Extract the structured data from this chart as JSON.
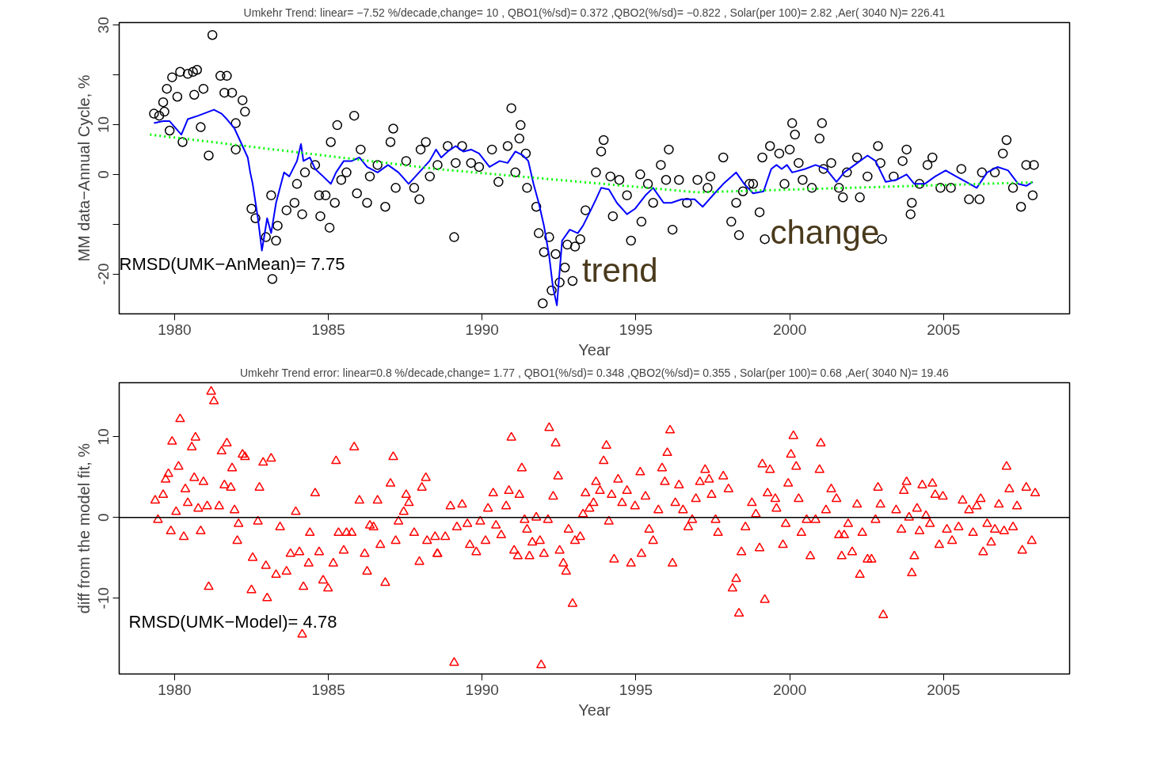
{
  "chart_data": [
    {
      "type": "scatter",
      "title": "Umkehr Trend: linear= −7.52 %/decade,change= 10 , QBO1(%/sd)= 0.372 ,QBO2(%/sd)= −0.822 , Solar(per 100)= 2.82 ,Aer( 3040 N)= 226.41",
      "xlabel": "Year",
      "ylabel": "MM data−Annual Cycle, %",
      "xlim": [
        1978.2,
        2009.1
      ],
      "ylim": [
        -28,
        30.5
      ],
      "xticks": [
        1980,
        1985,
        1990,
        1995,
        2000,
        2005
      ],
      "yticks": [
        30,
        {
          "value": 20,
          "label": null
        },
        10,
        0,
        {
          "value": -10,
          "label": null
        },
        -20
      ],
      "grid": false,
      "annotations": [
        "RMSD(UMK−AnMean)= 7.75",
        "trend",
        "change"
      ],
      "series": [
        {
          "type": "scatter",
          "marker": "circle",
          "color": "#000000",
          "x": [
            1979.33,
            1979.5,
            1979.67,
            1979.63,
            1979.75,
            1979.92,
            1980.09,
            1980.18,
            1979.84,
            1980.26,
            1980.43,
            1980.6,
            1980.73,
            1980.64,
            1980.94,
            1980.85,
            1981.11,
            1981.23,
            1981.49,
            1981.7,
            1981.62,
            1981.87,
            1982.21,
            1982.29,
            1981.99,
            1981.99,
            1982.5,
            1982.63,
            1982.97,
            1983.3,
            1983.18,
            1983.14,
            1983.35,
            1983.64,
            1983.98,
            1983.9,
            1984.15,
            1984.24,
            1984.57,
            1984.7,
            1984.91,
            1984.74,
            1985.04,
            1985.21,
            1985.08,
            1985.29,
            1985.42,
            1985.84,
            1985.59,
            1986.05,
            1985.93,
            1986.26,
            1986.35,
            1986.6,
            1986.85,
            1987.02,
            1987.11,
            1987.19,
            1987.53,
            1987.79,
            1987.96,
            1988.0,
            1988.17,
            1988.3,
            1988.55,
            1988.88,
            1989.35,
            1989.14,
            1989.64,
            1989.9,
            1990.32,
            1990.53,
            1990.83,
            1990.95,
            1991.25,
            1991.21,
            1991.08,
            1991.42,
            1991.46,
            1991.76,
            1991.84,
            1992.01,
            1992.18,
            1992.39,
            1992.26,
            1991.97,
            1992.52,
            1992.69,
            1992.94,
            1992.77,
            1993.02,
            1993.19,
            1993.36,
            1993.7,
            1993.95,
            1993.87,
            1994.25,
            1994.17,
            1994.46,
            1994.84,
            1994.71,
            1995.14,
            1995.18,
            1995.39,
            1995.56,
            1995.81,
            1996.07,
            1996.19,
            1995.98,
            1996.4,
            1996.66,
            1997.0,
            1997.33,
            1997.84,
            1998.1,
            1998.35,
            1998.26,
            1998.48,
            1998.69,
            1989.09,
            1997.42,
            1998.81,
            1999.02,
            1999.19,
            1999.11,
            1999.36,
            1999.66,
            1999.83,
            2000.08,
            2000.17,
            2000.0,
            2000.29,
            2000.42,
            2000.72,
            2001.05,
            2000.97,
            2001.1,
            2001.35,
            2001.6,
            2001.73,
            2001.86,
            2002.28,
            2002.19,
            2002.53,
            2002.87,
            2002.95,
            2003.0,
            2003.38,
            2003.67,
            2003.8,
            2003.97,
            2003.93,
            2004.22,
            2004.48,
            2004.64,
            2004.9,
            2005.24,
            2005.58,
            2005.83,
            2006.17,
            2006.25,
            2006.67,
            2006.93,
            2007.05,
            2007.26,
            2007.52,
            2007.69,
            2007.94,
            2007.9
          ],
          "values": [
            12.2,
            11.8,
            12.6,
            14.5,
            17.2,
            19.5,
            15.6,
            20.6,
            8.8,
            6.5,
            20.2,
            20.6,
            21.0,
            16.0,
            17.2,
            9.5,
            3.8,
            28.0,
            19.8,
            19.8,
            16.4,
            16.4,
            14.9,
            12.6,
            10.3,
            5.0,
            -6.9,
            -8.8,
            -12.6,
            -13.3,
            -21.0,
            -4.2,
            -10.3,
            -7.2,
            -1.9,
            -5.7,
            -8.0,
            0.4,
            1.9,
            -4.2,
            -4.2,
            -8.4,
            -10.7,
            -5.7,
            6.5,
            9.9,
            -1.1,
            11.8,
            0.4,
            5.0,
            -3.8,
            -5.7,
            -0.4,
            1.9,
            -6.5,
            6.5,
            9.2,
            -2.7,
            2.7,
            -2.7,
            -5.0,
            5.0,
            6.5,
            -0.4,
            1.9,
            5.7,
            5.7,
            2.3,
            2.3,
            1.5,
            5.0,
            -1.5,
            5.7,
            13.3,
            9.9,
            7.2,
            0.4,
            4.2,
            -2.7,
            -6.5,
            -11.8,
            -15.6,
            -12.6,
            -16.0,
            -23.3,
            -25.9,
            -21.7,
            -18.7,
            -21.4,
            -14.1,
            -14.5,
            -13.0,
            -7.2,
            0.4,
            6.9,
            4.6,
            -8.4,
            -0.4,
            -1.1,
            -13.3,
            -4.2,
            0.0,
            -9.5,
            -1.9,
            -5.7,
            1.9,
            5.0,
            -11.1,
            -1.1,
            -1.1,
            -5.7,
            -1.1,
            -2.7,
            3.4,
            -9.5,
            -12.2,
            -5.7,
            -3.4,
            -1.9,
            -12.6,
            -0.4,
            -1.9,
            -7.6,
            -13.0,
            3.4,
            5.7,
            4.2,
            -1.9,
            10.3,
            8.0,
            5.0,
            2.3,
            -1.1,
            -2.7,
            10.3,
            7.2,
            1.1,
            2.3,
            -2.7,
            -4.6,
            0.4,
            -4.6,
            3.4,
            -0.4,
            5.7,
            2.3,
            -13.0,
            -0.4,
            2.7,
            5.0,
            -5.7,
            -8.0,
            -1.9,
            1.9,
            3.4,
            -2.7,
            -2.7,
            1.1,
            -5.0,
            -5.0,
            0.4,
            0.4,
            4.2,
            6.9,
            -2.7,
            -6.5,
            1.9,
            1.9,
            -4.2
          ]
        },
        {
          "type": "line",
          "color": "#0000ff",
          "line_style": "solid",
          "x": [
            1979.33,
            1979.63,
            1979.84,
            1980.22,
            1980.43,
            1980.77,
            1981.28,
            1981.53,
            1981.7,
            1981.95,
            1982.21,
            1982.38,
            1982.46,
            1982.54,
            1982.71,
            1982.84,
            1983.01,
            1983.14,
            1983.3,
            1983.56,
            1983.73,
            1983.98,
            1984.11,
            1984.19,
            1984.4,
            1984.57,
            1984.83,
            1985.08,
            1985.25,
            1985.5,
            1985.76,
            1986.01,
            1986.26,
            1986.6,
            1986.94,
            1987.28,
            1987.61,
            1987.95,
            1988.29,
            1988.5,
            1988.67,
            1988.88,
            1989.14,
            1989.39,
            1989.64,
            1989.9,
            1990.24,
            1990.57,
            1990.83,
            1991.08,
            1991.33,
            1991.5,
            1991.67,
            1991.84,
            1992.01,
            1992.18,
            1992.3,
            1992.43,
            1992.6,
            1992.85,
            1993.11,
            1993.28,
            1993.53,
            1993.7,
            1993.87,
            1994.12,
            1994.38,
            1994.71,
            1994.97,
            1995.31,
            1995.56,
            1995.9,
            1996.15,
            1996.49,
            1996.91,
            1997.17,
            1997.5,
            1997.84,
            1998.26,
            1998.52,
            1998.81,
            1999.15,
            1999.4,
            1999.57,
            1999.74,
            1999.91,
            2000.08,
            2000.5,
            2000.84,
            2001.18,
            2001.52,
            2001.77,
            2002.11,
            2002.53,
            2002.79,
            2003.12,
            2003.46,
            2003.8,
            2004.05,
            2004.39,
            2004.73,
            2005.07,
            2005.41,
            2005.74,
            2006.08,
            2006.42,
            2006.76,
            2007.1,
            2007.43,
            2007.69,
            2007.9
          ],
          "values": [
            10.3,
            10.7,
            10.7,
            8.0,
            11.1,
            11.8,
            13.0,
            12.2,
            11.1,
            9.2,
            5.7,
            3.4,
            0.4,
            -1.9,
            -8.8,
            -15.3,
            -8.8,
            -11.8,
            -5.7,
            0.4,
            -0.4,
            2.7,
            6.1,
            2.7,
            3.4,
            1.1,
            -0.4,
            -1.9,
            0.4,
            2.7,
            2.7,
            3.4,
            1.5,
            0.4,
            1.9,
            0.4,
            -1.9,
            0.4,
            2.7,
            5.0,
            3.4,
            4.6,
            5.7,
            4.6,
            5.0,
            4.2,
            1.5,
            2.7,
            2.3,
            4.6,
            3.8,
            2.7,
            -1.9,
            -5.7,
            -10.3,
            -16.4,
            -22.5,
            -26.3,
            -13.3,
            -11.1,
            -11.8,
            -10.3,
            -7.2,
            -5.0,
            -2.7,
            -3.0,
            -5.7,
            -8.0,
            -6.9,
            -4.2,
            -2.7,
            -5.7,
            -5.7,
            -5.0,
            -5.0,
            -6.5,
            -4.2,
            -1.9,
            0.4,
            -1.9,
            -3.8,
            -3.4,
            1.1,
            1.9,
            1.1,
            1.9,
            0.4,
            1.1,
            1.9,
            1.1,
            -1.5,
            0.4,
            1.9,
            3.8,
            2.7,
            -1.5,
            -1.1,
            0.0,
            -1.9,
            -1.9,
            -0.4,
            0.8,
            -0.4,
            -1.5,
            -2.7,
            0.4,
            1.5,
            0.8,
            -1.9,
            -2.3,
            -1.5
          ]
        },
        {
          "type": "line",
          "color": "#00ff00",
          "line_style": "dotted",
          "x": [
            1979.2,
            1988.5,
            1997.0,
            2007.9
          ],
          "values": [
            8.0,
            1.1,
            -3.6,
            -1.6
          ]
        }
      ]
    },
    {
      "type": "scatter",
      "title": "Umkehr Trend error: linear=0.8 %/decade,change= 1.77 , QBO1(%/sd)= 0.348 ,QBO2(%/sd)= 0.355 , Solar(per 100)= 0.68 ,Aer( 3040 N)= 19.46",
      "xlabel": "Year",
      "ylabel": "diff from the model fit, %",
      "xlim": [
        1978.2,
        2009.1
      ],
      "ylim": [
        -19.4,
        16.7
      ],
      "xticks": [
        1980,
        1985,
        1990,
        1995,
        2000,
        2005
      ],
      "yticks": [
        -10,
        0,
        10
      ],
      "grid": false,
      "annotations": [
        "RMSD(UMK−Model)= 4.78"
      ],
      "ref_lines": [
        {
          "axis": "y",
          "value": 0,
          "color": "#000000"
        }
      ],
      "series": [
        {
          "type": "scatter",
          "marker": "triangle",
          "color": "#ff0000",
          "x": [
            1979.37,
            1979.46,
            1979.63,
            1979.71,
            1979.8,
            1979.92,
            1979.88,
            1980.05,
            1980.13,
            1980.18,
            1980.3,
            1980.35,
            1980.43,
            1980.56,
            1980.68,
            1980.64,
            1980.77,
            1980.85,
            1980.94,
            1981.06,
            1981.11,
            1981.19,
            1981.28,
            1981.45,
            1981.53,
            1981.7,
            1981.62,
            1981.83,
            1981.87,
            1981.95,
            1982.04,
            1982.08,
            1982.21,
            1982.29,
            1982.54,
            1982.5,
            1982.71,
            1982.76,
            1982.88,
            1982.97,
            1983.01,
            1983.14,
            1983.3,
            1983.43,
            1983.64,
            1983.77,
            1983.94,
            1984.06,
            1984.15,
            1984.19,
            1984.36,
            1984.4,
            1984.57,
            1984.7,
            1984.83,
            1984.99,
            1985.16,
            1985.33,
            1985.25,
            1985.5,
            1985.59,
            1985.76,
            1985.84,
            1986.01,
            1986.18,
            1986.26,
            1986.35,
            1986.47,
            1986.6,
            1986.69,
            1986.85,
            1987.02,
            1987.11,
            1987.19,
            1987.28,
            1987.45,
            1987.53,
            1987.62,
            1987.79,
            1987.96,
            1988.04,
            1988.17,
            1988.21,
            1988.47,
            1988.55,
            1988.54,
            1988.8,
            1988.97,
            1989.18,
            1989.35,
            1989.52,
            1989.6,
            1989.81,
            1989.09,
            1989.94,
            1990.11,
            1990.19,
            1990.36,
            1990.45,
            1990.62,
            1990.78,
            1990.87,
            1990.95,
            1991.04,
            1991.16,
            1991.21,
            1991.29,
            1991.38,
            1991.46,
            1991.54,
            1991.63,
            1991.76,
            1991.88,
            1991.92,
            1992.01,
            1992.14,
            1992.18,
            1992.31,
            1992.39,
            1992.47,
            1992.52,
            1992.64,
            1992.73,
            1992.81,
            1992.94,
            1993.02,
            1993.19,
            1993.28,
            1993.36,
            1993.49,
            1993.62,
            1993.7,
            1993.83,
            1993.95,
            1994.04,
            1994.12,
            1994.21,
            1994.29,
            1994.42,
            1994.55,
            1994.71,
            1994.84,
            1994.97,
            1995.14,
            1995.18,
            1995.31,
            1995.43,
            1995.56,
            1995.73,
            1995.85,
            1995.94,
            1996.02,
            1996.11,
            1996.19,
            1996.28,
            1996.4,
            1996.53,
            1996.7,
            1996.83,
            1996.95,
            1997.08,
            1997.25,
            1997.38,
            1997.46,
            1997.59,
            1997.67,
            1997.84,
            1998.01,
            1998.14,
            1998.26,
            1998.35,
            1998.43,
            1998.56,
            1998.77,
            1998.9,
            1999.02,
            1999.19,
            1999.11,
            1999.28,
            1999.36,
            1999.53,
            1999.57,
            1999.78,
            1999.87,
            1999.95,
            2000.04,
            2000.12,
            2000.21,
            2000.29,
            2000.38,
            2000.55,
            2000.67,
            2000.84,
            2000.97,
            2001.01,
            2001.18,
            2001.35,
            2001.52,
            2001.6,
            2001.69,
            2001.77,
            2002.03,
            2001.9,
            2002.19,
            2002.28,
            2002.36,
            2002.53,
            2002.66,
            2002.79,
            2002.87,
            2002.95,
            2003.04,
            2003.46,
            2003.63,
            2003.71,
            2003.8,
            2003.88,
            2003.97,
            2004.05,
            2004.14,
            2004.22,
            2004.31,
            2004.43,
            2004.56,
            2004.64,
            2004.73,
            2004.86,
            2004.98,
            2005.11,
            2005.28,
            2005.49,
            2005.62,
            2005.83,
            2005.96,
            2006.08,
            2006.21,
            2006.29,
            2006.42,
            2006.55,
            2006.67,
            2006.8,
            2006.97,
            2007.05,
            2007.14,
            2007.26,
            2007.39,
            2007.56,
            2007.69,
            2007.87,
            2007.98
          ],
          "values": [
            2.1,
            -0.3,
            2.8,
            4.7,
            5.4,
            9.4,
            -1.7,
            0.7,
            6.3,
            12.2,
            -2.4,
            3.5,
            1.8,
            8.7,
            9.9,
            4.9,
            1.1,
            -1.7,
            4.4,
            1.4,
            -8.6,
            15.6,
            14.4,
            1.4,
            8.2,
            9.2,
            4.0,
            3.7,
            6.1,
            0.9,
            -2.9,
            -0.8,
            7.8,
            7.5,
            -5.0,
            -9.0,
            -0.5,
            3.7,
            6.8,
            -6.0,
            -10.0,
            7.3,
            -7.1,
            -1.2,
            -6.7,
            -4.5,
            0.7,
            -4.3,
            -14.5,
            -8.6,
            -5.7,
            -1.9,
            3.0,
            -4.3,
            -7.8,
            -8.8,
            -5.7,
            -1.9,
            7.0,
            -4.1,
            -1.9,
            -1.9,
            8.7,
            2.1,
            -4.5,
            -6.7,
            -1.0,
            -1.2,
            2.1,
            -3.4,
            -8.1,
            4.2,
            7.5,
            -2.9,
            -0.5,
            0.7,
            2.8,
            1.8,
            -1.9,
            -5.5,
            3.7,
            4.9,
            -2.9,
            -2.4,
            -4.5,
            -4.5,
            -2.4,
            1.4,
            -1.2,
            1.6,
            -0.8,
            -3.4,
            -4.3,
            -18.0,
            -0.5,
            -2.9,
            1.1,
            3.0,
            -1.0,
            -2.2,
            1.4,
            3.3,
            9.9,
            -4.1,
            -4.8,
            2.8,
            6.1,
            -0.3,
            -1.5,
            -4.8,
            -3.1,
            0.0,
            -2.9,
            -18.3,
            -4.5,
            -0.3,
            11.1,
            2.6,
            9.2,
            5.1,
            -4.1,
            -5.7,
            -6.7,
            -1.5,
            -10.7,
            -2.9,
            -2.4,
            0.4,
            3.0,
            1.1,
            1.8,
            4.4,
            3.3,
            7.0,
            8.9,
            -0.5,
            2.8,
            -5.2,
            4.7,
            1.8,
            3.3,
            -5.7,
            1.4,
            5.6,
            -4.5,
            2.6,
            -1.5,
            -2.9,
            0.9,
            6.1,
            4.4,
            8.0,
            10.8,
            -5.7,
            1.8,
            4.0,
            0.9,
            -1.2,
            -0.3,
            2.3,
            4.4,
            5.9,
            4.7,
            2.8,
            -0.3,
            -1.9,
            5.1,
            3.5,
            -8.8,
            -7.6,
            -11.9,
            -4.3,
            -1.2,
            1.8,
            0.4,
            -3.8,
            -10.2,
            6.6,
            3.0,
            5.9,
            2.3,
            1.1,
            -3.4,
            -0.8,
            4.2,
            7.8,
            10.1,
            6.3,
            2.3,
            -1.9,
            -0.3,
            -4.8,
            -0.3,
            5.9,
            9.2,
            0.9,
            3.5,
            2.3,
            -2.2,
            -4.8,
            -2.2,
            -4.3,
            -0.8,
            1.6,
            -7.1,
            -1.9,
            -5.2,
            -5.2,
            -0.3,
            3.7,
            1.6,
            -12.1,
            0.9,
            -1.5,
            3.3,
            4.4,
            0.0,
            -6.9,
            -4.8,
            1.1,
            -1.7,
            4.0,
            0.2,
            -0.8,
            4.2,
            2.8,
            -3.4,
            2.6,
            -1.5,
            -2.9,
            -1.2,
            2.1,
            0.9,
            -1.9,
            1.4,
            2.3,
            -4.3,
            -0.8,
            -3.1,
            -1.5,
            1.6,
            -1.7,
            6.3,
            3.5,
            -1.2,
            1.4,
            -4.1,
            3.7,
            -2.9,
            3.0
          ]
        }
      ]
    }
  ]
}
